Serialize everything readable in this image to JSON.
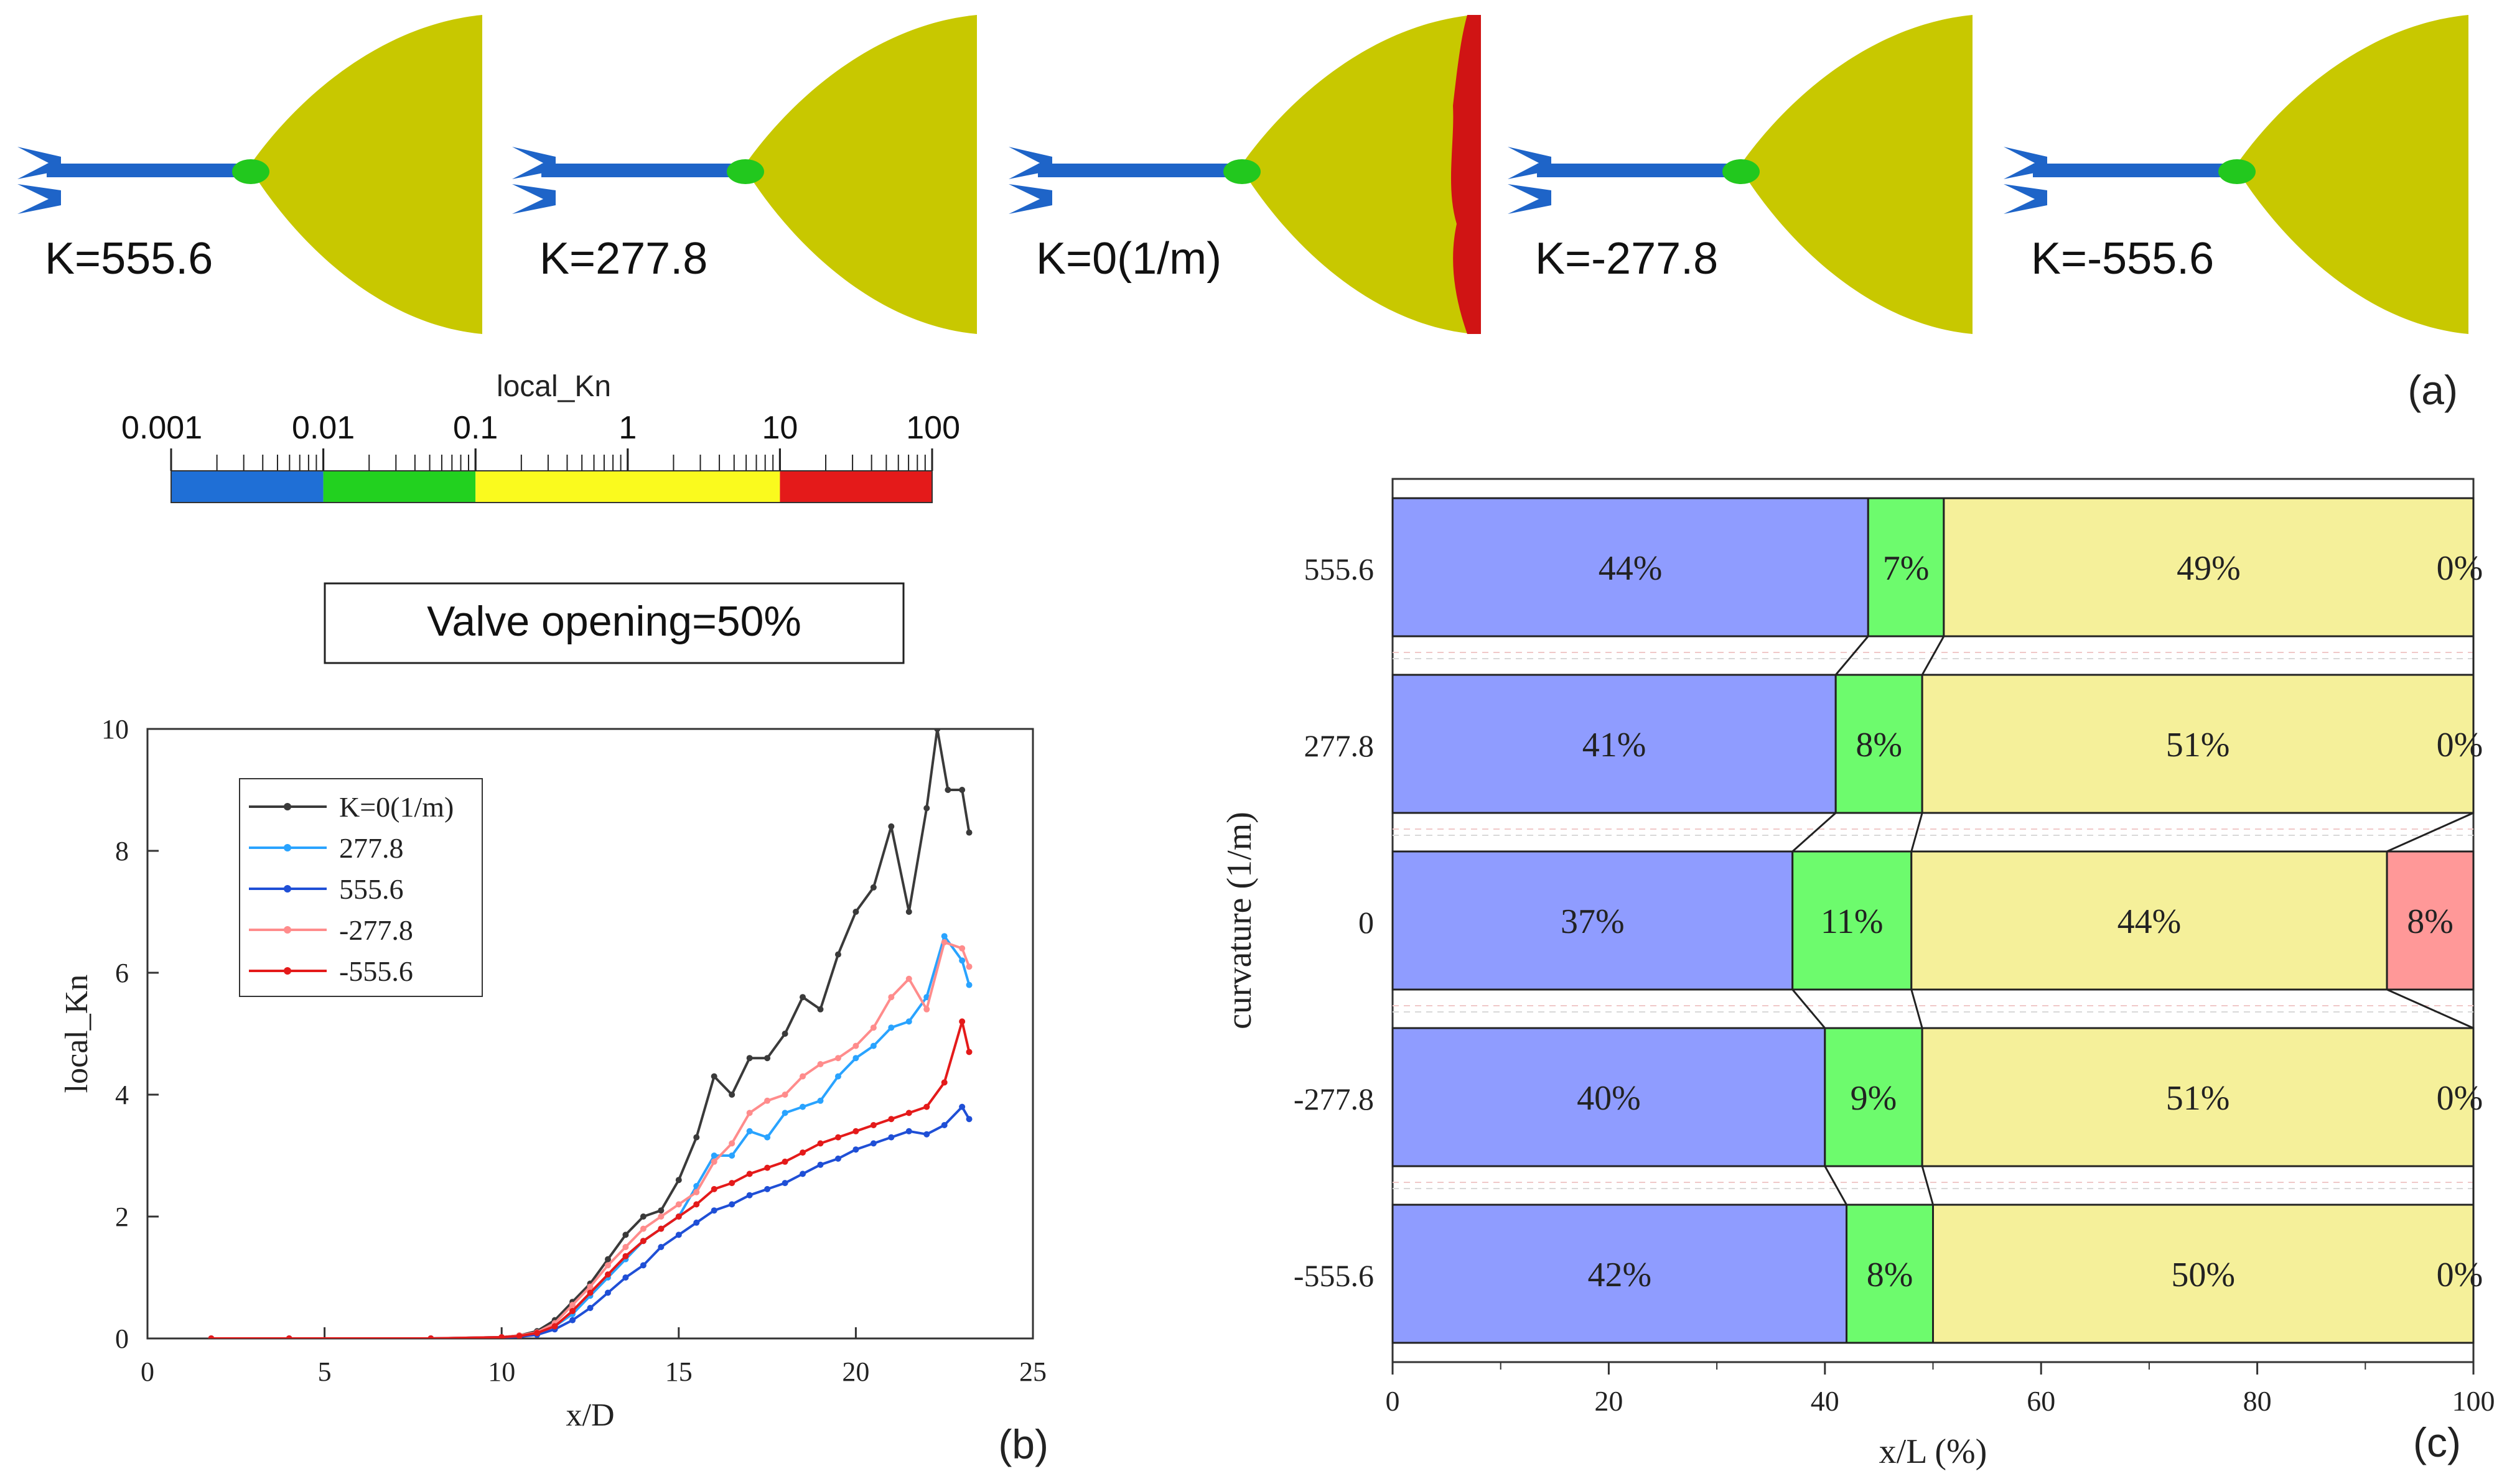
{
  "panel_a": {
    "label": "(a)",
    "nozzles": [
      {
        "label": "K=555.6",
        "red_edge": false
      },
      {
        "label": "K=277.8",
        "red_edge": false
      },
      {
        "label": "K=0(1/m)",
        "red_edge": true
      },
      {
        "label": "K=-277.8",
        "red_edge": false
      },
      {
        "label": "K=-555.6",
        "red_edge": false
      }
    ],
    "colorbar": {
      "title": "local_Kn",
      "ticks": [
        "0.001",
        "0.01",
        "0.1",
        "1",
        "10",
        "100"
      ],
      "segments": [
        {
          "from": "0.001",
          "to": "0.01",
          "color": "#1f6fd6"
        },
        {
          "from": "0.01",
          "to": "0.1",
          "color": "#22d11f"
        },
        {
          "from": "0.1",
          "to": "10",
          "color": "#fafa1e"
        },
        {
          "from": "10",
          "to": "100",
          "color": "#e41a1a"
        }
      ]
    },
    "valve_opening": "Valve opening=50%"
  },
  "colors": {
    "nozzle_body": "#c8c800",
    "pipe": "#1e64c8",
    "throat": "#22c81e",
    "red_zone": "#d01414",
    "blue_bar": "#8f9cff",
    "green_bar": "#6dfb6d",
    "yellow_bar": "#f5f09a",
    "red_bar": "#ff9898"
  },
  "chart_data": [
    {
      "type": "line",
      "panel": "(b)",
      "title": "",
      "xlabel": "x/D",
      "ylabel": "local_Kn",
      "xlim": [
        0,
        25
      ],
      "ylim": [
        0,
        10
      ],
      "xticks": [
        "0",
        "5",
        "10",
        "15",
        "20",
        "25"
      ],
      "yticks": [
        "0",
        "2",
        "4",
        "6",
        "8",
        "10"
      ],
      "legend_position": "top-left",
      "series": [
        {
          "name": "K=0(1/m)",
          "color": "#3a3a3a",
          "x": [
            1.8,
            4,
            8,
            10,
            10.5,
            11,
            11.5,
            12,
            12.5,
            13,
            13.5,
            14,
            14.5,
            15,
            15.5,
            16,
            16.5,
            17,
            17.5,
            18,
            18.5,
            19,
            19.5,
            20,
            20.5,
            21,
            21.5,
            22,
            22.3,
            22.6,
            23,
            23.2
          ],
          "y": [
            0,
            0,
            0,
            0.02,
            0.05,
            0.12,
            0.3,
            0.6,
            0.9,
            1.3,
            1.7,
            2.0,
            2.1,
            2.6,
            3.3,
            4.3,
            4.0,
            4.6,
            4.6,
            5.0,
            5.6,
            5.4,
            6.3,
            7.0,
            7.4,
            8.4,
            7.0,
            8.7,
            10.0,
            9.0,
            9.0,
            8.3
          ]
        },
        {
          "name": "277.8",
          "color": "#29a3ff",
          "x": [
            1.8,
            4,
            8,
            10,
            10.5,
            11,
            11.5,
            12,
            12.5,
            13,
            13.5,
            14,
            14.5,
            15,
            15.5,
            16,
            16.5,
            17,
            17.5,
            18,
            18.5,
            19,
            19.5,
            20,
            20.5,
            21,
            21.5,
            22,
            22.5,
            23,
            23.2
          ],
          "y": [
            0,
            0,
            0,
            0.02,
            0.04,
            0.08,
            0.2,
            0.4,
            0.7,
            1.0,
            1.3,
            1.6,
            1.8,
            2.0,
            2.5,
            3.0,
            3.0,
            3.4,
            3.3,
            3.7,
            3.8,
            3.9,
            4.3,
            4.6,
            4.8,
            5.1,
            5.2,
            5.6,
            6.6,
            6.2,
            5.8
          ]
        },
        {
          "name": "555.6",
          "color": "#1f4fd6",
          "x": [
            1.8,
            4,
            8,
            10,
            10.5,
            11,
            11.5,
            12,
            12.5,
            13,
            13.5,
            14,
            14.5,
            15,
            15.5,
            16,
            16.5,
            17,
            17.5,
            18,
            18.5,
            19,
            19.5,
            20,
            20.5,
            21,
            21.5,
            22,
            22.5,
            23,
            23.2
          ],
          "y": [
            0,
            0,
            0,
            0.01,
            0.03,
            0.06,
            0.15,
            0.3,
            0.5,
            0.75,
            1.0,
            1.2,
            1.5,
            1.7,
            1.9,
            2.1,
            2.2,
            2.35,
            2.45,
            2.55,
            2.7,
            2.85,
            2.95,
            3.1,
            3.2,
            3.3,
            3.4,
            3.35,
            3.5,
            3.8,
            3.6
          ]
        },
        {
          "name": "-277.8",
          "color": "#ff8c8c",
          "x": [
            1.8,
            4,
            8,
            10,
            10.5,
            11,
            11.5,
            12,
            12.5,
            13,
            13.5,
            14,
            14.5,
            15,
            15.5,
            16,
            16.5,
            17,
            17.5,
            18,
            18.5,
            19,
            19.5,
            20,
            20.5,
            21,
            21.5,
            22,
            22.5,
            23,
            23.2
          ],
          "y": [
            0,
            0,
            0,
            0.02,
            0.05,
            0.1,
            0.25,
            0.55,
            0.85,
            1.2,
            1.5,
            1.8,
            2.0,
            2.2,
            2.4,
            2.9,
            3.2,
            3.7,
            3.9,
            4.0,
            4.3,
            4.5,
            4.6,
            4.8,
            5.1,
            5.6,
            5.9,
            5.4,
            6.5,
            6.4,
            6.1
          ]
        },
        {
          "name": "-555.6",
          "color": "#e41a1a",
          "x": [
            1.8,
            4,
            8,
            10,
            10.5,
            11,
            11.5,
            12,
            12.5,
            13,
            13.5,
            14,
            14.5,
            15,
            15.5,
            16,
            16.5,
            17,
            17.5,
            18,
            18.5,
            19,
            19.5,
            20,
            20.5,
            21,
            21.5,
            22,
            22.5,
            23,
            23.2
          ],
          "y": [
            0,
            0,
            0,
            0.02,
            0.04,
            0.09,
            0.2,
            0.45,
            0.75,
            1.05,
            1.35,
            1.6,
            1.8,
            2.0,
            2.2,
            2.45,
            2.55,
            2.7,
            2.8,
            2.9,
            3.05,
            3.2,
            3.3,
            3.4,
            3.5,
            3.6,
            3.7,
            3.8,
            4.2,
            5.2,
            4.7
          ]
        }
      ]
    },
    {
      "type": "bar",
      "stacked": true,
      "orientation": "horizontal",
      "panel": "(c)",
      "title": "",
      "xlabel": "x/L  (%)",
      "ylabel": "curvature  (1/m)",
      "xlim": [
        0,
        100
      ],
      "xticks": [
        "0",
        "20",
        "40",
        "60",
        "80",
        "100"
      ],
      "categories": [
        "555.6",
        "277.8",
        "0",
        "-277.8",
        "-555.6"
      ],
      "series": [
        {
          "name": "blue",
          "color": "#8f9cff",
          "values": [
            44,
            41,
            37,
            40,
            42
          ],
          "labels": [
            "44%",
            "41%",
            "37%",
            "40%",
            "42%"
          ]
        },
        {
          "name": "green",
          "color": "#6dfb6d",
          "values": [
            7,
            8,
            11,
            9,
            8
          ],
          "labels": [
            "7%",
            "8%",
            "11%",
            "9%",
            "8%"
          ]
        },
        {
          "name": "yellow",
          "color": "#f5f09a",
          "values": [
            49,
            51,
            44,
            51,
            50
          ],
          "labels": [
            "49%",
            "51%",
            "44%",
            "51%",
            "50%"
          ]
        },
        {
          "name": "red",
          "color": "#ff9898",
          "values": [
            0,
            0,
            8,
            0,
            0
          ],
          "labels": [
            "0%",
            "0%",
            "8%",
            "0%",
            "0%"
          ]
        }
      ]
    }
  ]
}
